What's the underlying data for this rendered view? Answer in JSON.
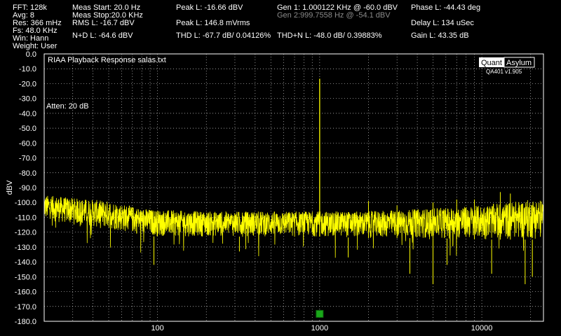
{
  "header": {
    "col1": [
      "FFT:  128k",
      "Avg: 8",
      "Res: 366 mHz",
      "Fs: 48.0 KHz",
      "Win: Hann",
      "Weight: User"
    ],
    "meas_start": "Meas Start: 20.0 Hz",
    "meas_stop": "Meas Stop:20.0 KHz",
    "rms": "RMS L: -16.7 dBV",
    "nd": "N+D L: -64.6 dBV",
    "peak_dbv": "Peak L: -16.66 dBV",
    "peak_mv": "Peak L: 146.8 mVrms",
    "thd": "THD L: -67.7 dB/ 0.04126%",
    "gen1": "Gen 1: 1.000122 KHz @ -60.0  dBV",
    "gen2": "Gen 2:999.7558 Hz @ -54.1  dBV",
    "thdn": "THD+N L: -48.0 dB/ 0.39883%",
    "phase": "Phase L: -44.43 deg",
    "delay": "Delay L: 134 uSec",
    "gain": "Gain L: 43.35 dB"
  },
  "logo": {
    "part1": "Quant",
    "part2": "Asylum",
    "version": "QA401 v1.905"
  },
  "annotation": "Atten: 20 dB",
  "colors": {
    "trace": "#ffff00",
    "grid": "#ffffff",
    "background": "#000000",
    "marker": "#1aa81a"
  },
  "chart_data": {
    "type": "line",
    "title": "RIAA Playback Response salas.txt",
    "ylabel": "dBV",
    "xlabel": "",
    "x_scale": "log",
    "xlim": [
      20,
      24000
    ],
    "ylim": [
      -180,
      0
    ],
    "x_ticks": [
      100,
      1000,
      10000
    ],
    "x_tick_labels": [
      "100",
      "1000",
      "10000"
    ],
    "y_ticks": [
      0,
      -10,
      -20,
      -30,
      -40,
      -50,
      -60,
      -70,
      -80,
      -90,
      -100,
      -110,
      -120,
      -130,
      -140,
      -150,
      -160,
      -170,
      -180
    ],
    "y_tick_labels": [
      "0.0",
      "-10.0",
      "-20.0",
      "-30.0",
      "-40.0",
      "-50.0",
      "-60.0",
      "-70.0",
      "-80.0",
      "-90.0",
      "-100.0",
      "-110.0",
      "-120.0",
      "-130.0",
      "-140.0",
      "-150.0",
      "-160.0",
      "-170.0",
      "-180.0"
    ],
    "grid": true,
    "series": [
      {
        "noise_floor_envelope": {
          "x": [
            20,
            30,
            50,
            80,
            100,
            200,
            500,
            1000,
            2000,
            5000,
            10000,
            20000,
            24000
          ],
          "y_upper": [
            -95,
            -97,
            -99,
            -104,
            -105,
            -106,
            -106,
            -106,
            -106,
            -104,
            -102,
            -98,
            -98
          ],
          "y_lower": [
            -112,
            -115,
            -118,
            -122,
            -123,
            -123,
            -123,
            -123,
            -124,
            -124,
            -125,
            -125,
            -125
          ]
        },
        "peaks": [
          {
            "x": 1000,
            "y": -16.7
          }
        ],
        "harmonics": [
          {
            "x": 2000,
            "y": -99
          },
          {
            "x": 3000,
            "y": -102
          },
          {
            "x": 5000,
            "y": -100
          },
          {
            "x": 7000,
            "y": -98
          },
          {
            "x": 9000,
            "y": -98
          },
          {
            "x": 13000,
            "y": -93
          },
          {
            "x": 15000,
            "y": -94
          }
        ],
        "dips": [
          {
            "x": 95,
            "y": -142
          },
          {
            "x": 320,
            "y": -133
          },
          {
            "x": 1500,
            "y": -137
          },
          {
            "x": 3600,
            "y": -148
          },
          {
            "x": 5000,
            "y": -155
          },
          {
            "x": 6100,
            "y": -142
          },
          {
            "x": 11500,
            "y": -148
          },
          {
            "x": 18500,
            "y": -155
          },
          {
            "x": 20500,
            "y": -150
          }
        ]
      }
    ],
    "marker": {
      "x": 1000,
      "y": -175
    }
  }
}
